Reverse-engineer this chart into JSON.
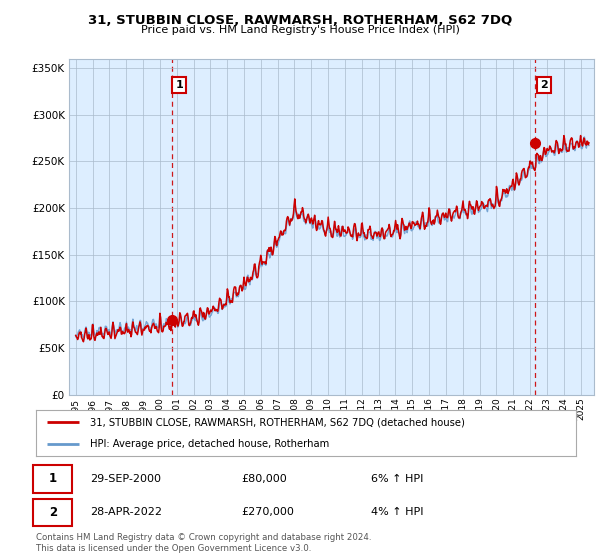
{
  "title": "31, STUBBIN CLOSE, RAWMARSH, ROTHERHAM, S62 7DQ",
  "subtitle": "Price paid vs. HM Land Registry's House Price Index (HPI)",
  "ylabel_ticks": [
    "£0",
    "£50K",
    "£100K",
    "£150K",
    "£200K",
    "£250K",
    "£300K",
    "£350K"
  ],
  "ylabel_values": [
    0,
    50000,
    100000,
    150000,
    200000,
    250000,
    300000,
    350000
  ],
  "ylim": [
    0,
    360000
  ],
  "legend_label_red": "31, STUBBIN CLOSE, RAWMARSH, ROTHERHAM, S62 7DQ (detached house)",
  "legend_label_blue": "HPI: Average price, detached house, Rotherham",
  "annotation1_date": "29-SEP-2000",
  "annotation1_price": "£80,000",
  "annotation1_hpi": "6% ↑ HPI",
  "annotation2_date": "28-APR-2022",
  "annotation2_price": "£270,000",
  "annotation2_hpi": "4% ↑ HPI",
  "footer": "Contains HM Land Registry data © Crown copyright and database right 2024.\nThis data is licensed under the Open Government Licence v3.0.",
  "sale1_x": 2000.75,
  "sale1_y": 80000,
  "sale2_x": 2022.32,
  "sale2_y": 270000,
  "red_color": "#cc0000",
  "blue_color": "#6699cc",
  "blue_fill_color": "#ddeeff",
  "vline_color": "#cc0000",
  "chart_bg_color": "#ddeeff",
  "background_color": "#ffffff",
  "grid_color": "#aabbcc",
  "annotation_box_color": "#cc0000",
  "xlim_left": 1994.6,
  "xlim_right": 2025.8
}
